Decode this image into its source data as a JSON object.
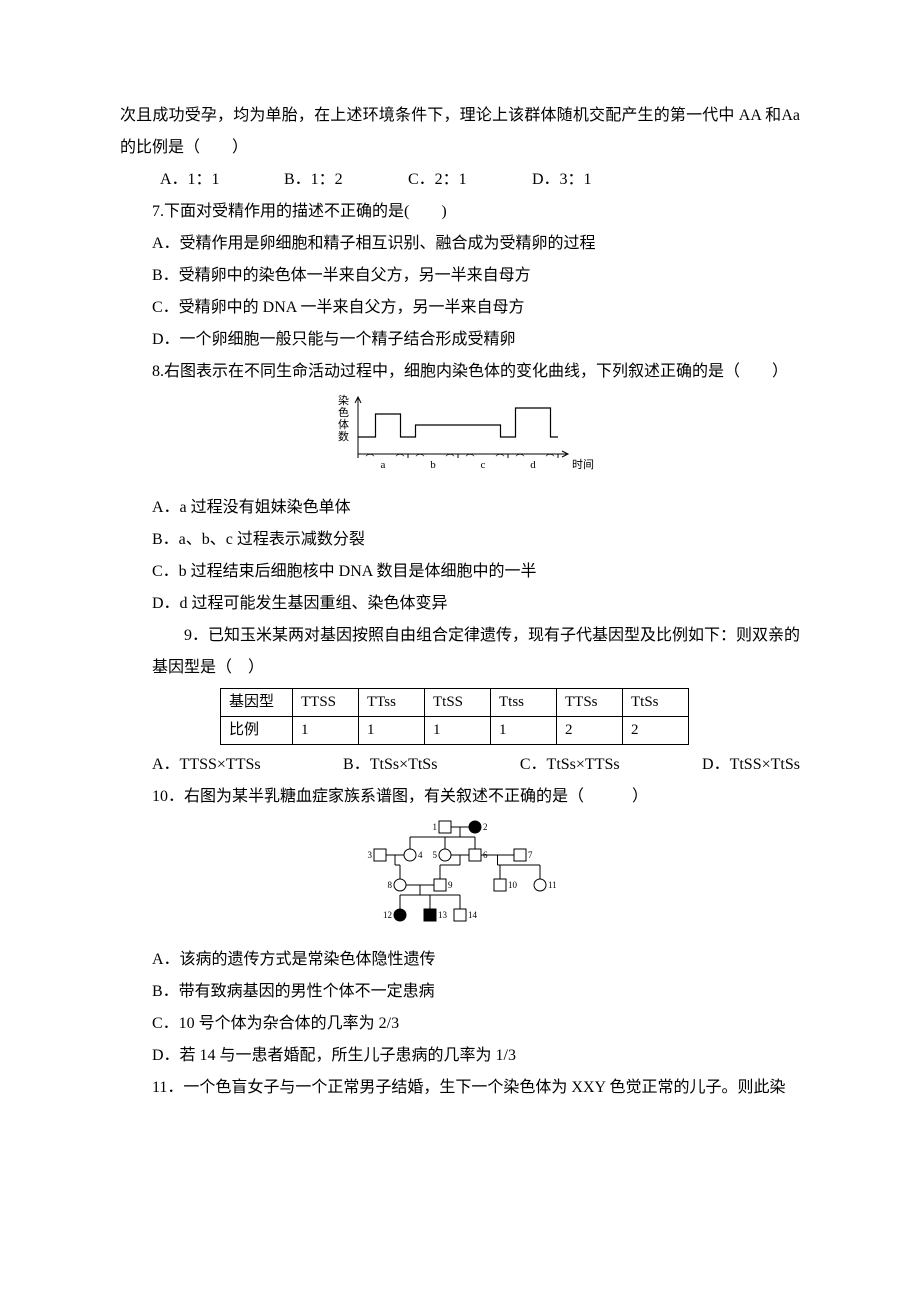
{
  "q6": {
    "context": "次且成功受孕，均为单胎，在上述环境条件下，理论上该群体随机交配产生的第一代中 AA 和Aa 的比例是（　　）",
    "optA": "A．1：1",
    "optB": "B．1：2",
    "optC": "C．2：1",
    "optD": "D．3：1"
  },
  "q7": {
    "stem": "7.下面对受精作用的描述不正确的是(　　)",
    "A": "A．受精作用是卵细胞和精子相互识别、融合成为受精卵的过程",
    "B": "B．受精卵中的染色体一半来自父方，另一半来自母方",
    "C": "C．受精卵中的 DNA 一半来自父方，另一半来自母方",
    "D": "D．一个卵细胞一般只能与一个精子结合形成受精卵"
  },
  "q8": {
    "stem": "8.右图表示在不同生命活动过程中，细胞内染色体的变化曲线，下列叙述正确的是（　　）",
    "A": "A．a 过程没有姐妹染色单体",
    "B": "B．a、b、c 过程表示减数分裂",
    "C": "C．b 过程结束后细胞核中 DNA 数目是体细胞中的一半",
    "D": "D．d 过程可能发生基因重组、染色体变异",
    "chart": {
      "ylabel": "染色体数",
      "xlabel": "时间",
      "segments": [
        "a",
        "b",
        "c",
        "d"
      ],
      "levels": {
        "base": 17,
        "mid": 29,
        "high": 40,
        "tall": 46
      },
      "stroke": "#000000"
    }
  },
  "q9": {
    "stem": "9．已知玉米某两对基因按照自由组合定律遗传，现有子代基因型及比例如下：则双亲的基因型是（　）",
    "table": {
      "header": "基因型",
      "cols": [
        "TTSS",
        "TTss",
        "TtSS",
        "Ttss",
        "TTSs",
        "TtSs"
      ],
      "ratio_label": "比例",
      "ratios": [
        "1",
        "1",
        "1",
        "1",
        "2",
        "2"
      ]
    },
    "optA": "A．TTSS×TTSs",
    "optB": "B．TtSs×TtSs",
    "optC": "C．TtSs×TTSs",
    "optD": "D．TtSS×TtSs"
  },
  "q10": {
    "stem": "10．右图为某半乳糖血症家族系谱图，有关叙述不正确的是（　　　）",
    "A": "A．该病的遗传方式是常染色体隐性遗传",
    "B": "B．带有致病基因的男性个体不一定患病",
    "C": "C．10 号个体为杂合体的几率为 2/3",
    "D": "D．若 14 与一患者婚配，所生儿子患病的几率为 1/3",
    "pedigree": {
      "gen1": [
        {
          "id": "1",
          "sex": "m",
          "aff": false
        },
        {
          "id": "2",
          "sex": "f",
          "aff": true
        }
      ],
      "gen2": [
        {
          "id": "3",
          "sex": "m",
          "aff": false
        },
        {
          "id": "4",
          "sex": "f",
          "aff": false
        },
        {
          "id": "5",
          "sex": "f",
          "aff": false
        },
        {
          "id": "6",
          "sex": "m",
          "aff": false
        },
        {
          "id": "7",
          "sex": "m",
          "aff": false
        }
      ],
      "gen3": [
        {
          "id": "8",
          "sex": "f",
          "aff": false
        },
        {
          "id": "9",
          "sex": "m",
          "aff": false
        },
        {
          "id": "10",
          "sex": "m",
          "aff": false
        },
        {
          "id": "11",
          "sex": "f",
          "aff": false
        }
      ],
      "gen4": [
        {
          "id": "12",
          "sex": "f",
          "aff": true
        },
        {
          "id": "13",
          "sex": "m",
          "aff": true
        },
        {
          "id": "14",
          "sex": "m",
          "aff": false
        }
      ]
    }
  },
  "q11": {
    "stem": "11．一个色盲女子与一个正常男子结婚，生下一个染色体为 XXY 色觉正常的儿子。则此染"
  }
}
